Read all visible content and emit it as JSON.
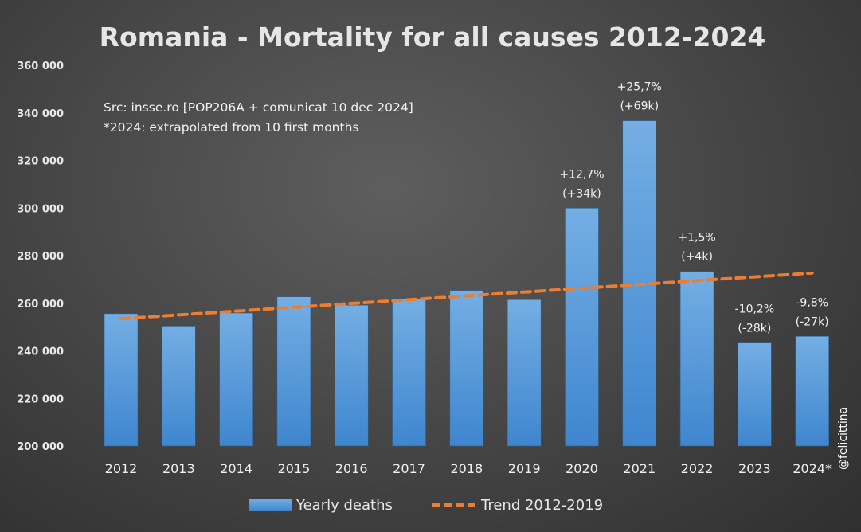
{
  "chart_data": {
    "type": "bar",
    "title": "Romania - Mortality for all causes 2012-2024",
    "categories": [
      "2012",
      "2013",
      "2014",
      "2015",
      "2016",
      "2017",
      "2018",
      "2019",
      "2020",
      "2021",
      "2022",
      "2023",
      "2024*"
    ],
    "series": [
      {
        "name": "Yearly deaths",
        "type": "bar",
        "color": "#5b9bd5",
        "values": [
          255600,
          250400,
          255900,
          262700,
          259200,
          262000,
          265400,
          261500,
          300000,
          336700,
          273400,
          243300,
          246100
        ]
      },
      {
        "name": "Trend 2012-2019",
        "type": "line",
        "style": "dashed",
        "color": "#ed7d31",
        "values": [
          253500,
          255100,
          256700,
          258300,
          259900,
          261500,
          263100,
          264700,
          266300,
          267900,
          269500,
          271100,
          272700
        ]
      }
    ],
    "data_labels": [
      {
        "category": "2020",
        "line1": "+12,7%",
        "line2": "(+34k)"
      },
      {
        "category": "2021",
        "line1": "+25,7%",
        "line2": "(+69k)"
      },
      {
        "category": "2022",
        "line1": "+1,5%",
        "line2": "(+4k)"
      },
      {
        "category": "2023",
        "line1": "-10,2%",
        "line2": "(-28k)"
      },
      {
        "category": "2024*",
        "line1": "-9,8%",
        "line2": "(-27k)"
      }
    ],
    "y_ticks": [
      "200 000",
      "220 000",
      "240 000",
      "260 000",
      "280 000",
      "300 000",
      "320 000",
      "340 000",
      "360 000"
    ],
    "ylim": [
      200000,
      360000
    ],
    "xlabel": "",
    "ylabel": "",
    "grid": false,
    "legend_position": "bottom",
    "annotations": [
      "Src: insse.ro [POP206A + comunicat 10 dec 2024]",
      "*2024: extrapolated from 10 first months"
    ],
    "watermark": "@felicittina"
  }
}
